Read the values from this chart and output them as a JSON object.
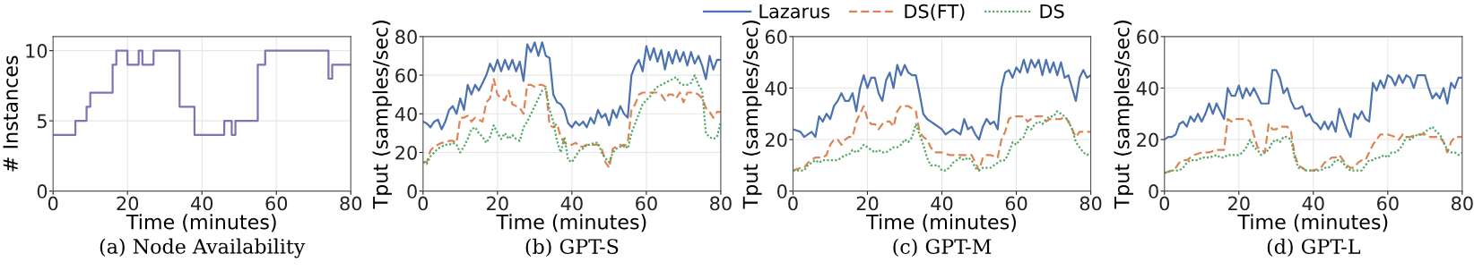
{
  "chart_data": [
    {
      "type": "step",
      "title": "(a) Node Availability",
      "xlabel": "Time (minutes)",
      "ylabel": "# Instances",
      "xlim": [
        0,
        80
      ],
      "ylim": [
        0,
        11
      ],
      "xticks": [
        0,
        20,
        40,
        60,
        80
      ],
      "yticks": [
        0,
        5,
        10
      ],
      "grid": true,
      "x": [
        0,
        6,
        9,
        10,
        16,
        17,
        20,
        23,
        24,
        27,
        34,
        38,
        46,
        48,
        49,
        55,
        57,
        74,
        75,
        80
      ],
      "series": [
        {
          "color": "#8172b3",
          "line_style": "solid",
          "values": [
            4,
            5,
            6,
            7,
            9,
            10,
            9,
            10,
            9,
            10,
            6,
            4,
            5,
            4,
            5,
            9,
            10,
            8,
            9,
            9
          ]
        }
      ]
    },
    {
      "type": "line",
      "title": "(b) GPT-S",
      "xlabel": "Time (minutes)",
      "ylabel": "Tput (samples/sec)",
      "xlim": [
        0,
        80
      ],
      "ylim": [
        0,
        80
      ],
      "xticks": [
        0,
        20,
        40,
        60,
        80
      ],
      "yticks": [
        0,
        20,
        40,
        60,
        80
      ],
      "grid": true,
      "x": [
        0,
        1,
        2,
        3,
        4,
        5,
        6,
        7,
        8,
        9,
        10,
        11,
        12,
        13,
        14,
        15,
        16,
        17,
        18,
        19,
        20,
        21,
        22,
        23,
        24,
        25,
        26,
        27,
        28,
        29,
        30,
        31,
        32,
        33,
        34,
        35,
        36,
        37,
        38,
        39,
        40,
        41,
        42,
        43,
        44,
        45,
        46,
        47,
        48,
        49,
        50,
        51,
        52,
        53,
        54,
        55,
        56,
        57,
        58,
        59,
        60,
        61,
        62,
        63,
        64,
        65,
        66,
        67,
        68,
        69,
        70,
        71,
        72,
        73,
        74,
        75,
        76,
        77,
        78,
        79,
        80
      ],
      "series": [
        {
          "color": "#4c72b0",
          "line_style": "solid",
          "values": [
            36,
            35,
            33,
            36,
            37,
            32,
            36,
            42,
            44,
            40,
            48,
            42,
            55,
            50,
            55,
            52,
            56,
            60,
            66,
            62,
            68,
            62,
            68,
            63,
            68,
            62,
            67,
            57,
            76,
            72,
            77,
            70,
            77,
            70,
            69,
            50,
            46,
            45,
            42,
            35,
            33,
            36,
            34,
            36,
            33,
            38,
            35,
            42,
            38,
            40,
            34,
            42,
            38,
            44,
            40,
            38,
            60,
            65,
            68,
            62,
            75,
            68,
            74,
            67,
            73,
            63,
            72,
            66,
            73,
            67,
            72,
            65,
            72,
            66,
            70,
            65,
            58,
            70,
            63,
            68,
            68
          ]
        },
        {
          "color": "#dd8452",
          "line_style": "dashed",
          "values": [
            15,
            15,
            21,
            23,
            24,
            25,
            25,
            26,
            26,
            25,
            38,
            38,
            39,
            36,
            38,
            37,
            36,
            46,
            48,
            58,
            50,
            48,
            47,
            52,
            45,
            44,
            43,
            40,
            55,
            55,
            54,
            55,
            55,
            54,
            34,
            33,
            35,
            28,
            25,
            24,
            24,
            25,
            23,
            23,
            24,
            24,
            24,
            24,
            22,
            15,
            12,
            22,
            23,
            24,
            23,
            25,
            42,
            45,
            50,
            51,
            51,
            51,
            51,
            51,
            50,
            47,
            50,
            50,
            48,
            51,
            46,
            51,
            51,
            51,
            50,
            48,
            43,
            41,
            38,
            41,
            41
          ]
        },
        {
          "color": "#55a868",
          "line_style": "dotted",
          "values": [
            15,
            14,
            18,
            20,
            22,
            23,
            24,
            24,
            25,
            24,
            20,
            23,
            27,
            32,
            33,
            30,
            28,
            25,
            28,
            34,
            30,
            27,
            30,
            27,
            29,
            27,
            26,
            33,
            36,
            40,
            44,
            48,
            52,
            53,
            42,
            36,
            26,
            20,
            28,
            16,
            15,
            18,
            21,
            22,
            24,
            24,
            25,
            25,
            20,
            17,
            15,
            20,
            22,
            23,
            24,
            22,
            30,
            35,
            40,
            45,
            47,
            49,
            52,
            54,
            55,
            56,
            57,
            58,
            59,
            56,
            55,
            55,
            56,
            60,
            55,
            52,
            30,
            28,
            27,
            28,
            36
          ]
        }
      ]
    },
    {
      "type": "line",
      "title": "(c) GPT-M",
      "xlabel": "Time (minutes)",
      "ylabel": "Tput (samples/sec)",
      "xlim": [
        0,
        80
      ],
      "ylim": [
        0,
        60
      ],
      "xticks": [
        0,
        20,
        40,
        60,
        80
      ],
      "yticks": [
        0,
        20,
        40,
        60
      ],
      "grid": true,
      "legend": "top",
      "series": [
        {
          "name": "Lazarus",
          "color": "#4c72b0",
          "line_style": "solid",
          "x": [
            0,
            2,
            3,
            5,
            6,
            7,
            8,
            9,
            10,
            11,
            12,
            13,
            14,
            15,
            16,
            17,
            18,
            19,
            20,
            21,
            22,
            23,
            24,
            25,
            26,
            27,
            28,
            29,
            30,
            31,
            32,
            33,
            34,
            35,
            36,
            37,
            38,
            39,
            40,
            41,
            42,
            43,
            44,
            45,
            46,
            47,
            48,
            49,
            50,
            51,
            52,
            53,
            54,
            55,
            56,
            57,
            58,
            59,
            60,
            61,
            62,
            63,
            64,
            65,
            66,
            67,
            68,
            69,
            70,
            71,
            72,
            73,
            74,
            75,
            76,
            77,
            78,
            79,
            80
          ],
          "values": [
            24,
            23,
            21,
            23,
            21,
            29,
            27,
            30,
            28,
            33,
            35,
            38,
            35,
            35,
            38,
            31,
            40,
            45,
            40,
            44,
            44,
            38,
            35,
            43,
            46,
            40,
            49,
            45,
            49,
            46,
            45,
            45,
            38,
            30,
            28,
            27,
            26,
            25,
            24,
            22,
            23,
            24,
            23,
            22,
            28,
            24,
            25,
            22,
            20,
            25,
            28,
            26,
            27,
            24,
            40,
            46,
            47,
            44,
            48,
            46,
            51,
            46,
            51,
            48,
            51,
            45,
            51,
            46,
            50,
            45,
            50,
            44,
            45,
            40,
            35,
            44,
            47,
            44,
            45
          ]
        },
        {
          "name": "DS(FT)",
          "color": "#dd8452",
          "line_style": "dashed",
          "x": [
            0,
            2,
            3,
            4,
            5,
            6,
            8,
            9,
            10,
            11,
            12,
            13,
            14,
            15,
            16,
            17,
            18,
            19,
            20,
            21,
            22,
            23,
            24,
            25,
            26,
            27,
            28,
            29,
            30,
            31,
            32,
            33,
            34,
            35,
            36,
            37,
            38,
            39,
            40,
            42,
            45,
            48,
            49,
            50,
            51,
            52,
            53,
            55,
            56,
            57,
            58,
            59,
            60,
            62,
            63,
            64,
            65,
            67,
            68,
            69,
            70,
            72,
            73,
            74,
            75,
            76,
            77,
            79,
            80
          ],
          "values": [
            8,
            9,
            9,
            11,
            12,
            13,
            13,
            14,
            18,
            20,
            20,
            18,
            20,
            21,
            21,
            27,
            30,
            33,
            28,
            26,
            26,
            24,
            26,
            27,
            27,
            25,
            31,
            33,
            33,
            33,
            32,
            31,
            23,
            21,
            20,
            17,
            15,
            15,
            15,
            14,
            14,
            14,
            11,
            8,
            13,
            14,
            14,
            13,
            20,
            23,
            28,
            29,
            29,
            29,
            27,
            28,
            29,
            29,
            27,
            28,
            28,
            28,
            29,
            27,
            24,
            21,
            23,
            23,
            23
          ]
        },
        {
          "name": "DS",
          "color": "#55a868",
          "line_style": "dotted",
          "x": [
            0,
            2,
            3,
            4,
            5,
            6,
            7,
            8,
            10,
            12,
            13,
            14,
            15,
            16,
            17,
            18,
            19,
            20,
            21,
            22,
            23,
            24,
            25,
            26,
            27,
            28,
            29,
            30,
            31,
            32,
            33,
            34,
            35,
            36,
            37,
            38,
            39,
            40,
            41,
            42,
            43,
            44,
            45,
            46,
            47,
            48,
            49,
            50,
            51,
            52,
            53,
            54,
            55,
            56,
            57,
            58,
            59,
            60,
            61,
            62,
            63,
            64,
            65,
            66,
            67,
            68,
            69,
            70,
            71,
            72,
            73,
            74,
            75,
            76,
            77,
            78,
            79,
            80
          ],
          "values": [
            8,
            8,
            8,
            10,
            11,
            12,
            11,
            12,
            12,
            12,
            13,
            14,
            14,
            16,
            15,
            16,
            18,
            17,
            16,
            15,
            16,
            15,
            15,
            16,
            17,
            17,
            18,
            20,
            19,
            21,
            26,
            22,
            18,
            13,
            10,
            10,
            10,
            8,
            8,
            9,
            11,
            12,
            13,
            12,
            13,
            12,
            9,
            8,
            9,
            9,
            9,
            10,
            11,
            12,
            12,
            15,
            19,
            18,
            20,
            21,
            25,
            24,
            26,
            27,
            26,
            28,
            29,
            29,
            31,
            30,
            29,
            27,
            24,
            19,
            17,
            15,
            14,
            15
          ]
        }
      ]
    },
    {
      "type": "line",
      "title": "(d) GPT-L",
      "xlabel": "Time (minutes)",
      "ylabel": "Tput (samples/sec)",
      "xlim": [
        0,
        80
      ],
      "ylim": [
        0,
        60
      ],
      "xticks": [
        0,
        20,
        40,
        60,
        80
      ],
      "yticks": [
        0,
        20,
        40,
        60
      ],
      "grid": true,
      "series": [
        {
          "color": "#4c72b0",
          "line_style": "solid",
          "x": [
            0,
            1,
            2,
            3,
            4,
            5,
            6,
            7,
            8,
            9,
            10,
            11,
            12,
            13,
            14,
            15,
            16,
            17,
            18,
            19,
            20,
            21,
            22,
            23,
            24,
            25,
            26,
            27,
            28,
            29,
            30,
            31,
            32,
            33,
            34,
            35,
            36,
            37,
            38,
            39,
            40,
            41,
            42,
            43,
            44,
            45,
            46,
            47,
            48,
            49,
            50,
            51,
            52,
            53,
            54,
            55,
            56,
            57,
            58,
            59,
            60,
            61,
            62,
            63,
            64,
            65,
            66,
            67,
            68,
            69,
            70,
            71,
            72,
            73,
            74,
            75,
            76,
            77,
            78,
            79,
            80
          ],
          "values": [
            20,
            21,
            21,
            22,
            26,
            27,
            25,
            29,
            27,
            30,
            27,
            30,
            34,
            30,
            34,
            31,
            28,
            40,
            37,
            37,
            41,
            36,
            40,
            37,
            40,
            37,
            34,
            34,
            34,
            47,
            47,
            44,
            38,
            40,
            35,
            32,
            32,
            33,
            29,
            30,
            27,
            26,
            24,
            27,
            24,
            27,
            23,
            32,
            28,
            24,
            21,
            30,
            28,
            31,
            28,
            27,
            42,
            39,
            43,
            40,
            45,
            44,
            41,
            45,
            42,
            45,
            44,
            40,
            45,
            45,
            45,
            40,
            36,
            38,
            36,
            40,
            34,
            42,
            40,
            44,
            44
          ]
        },
        {
          "color": "#dd8452",
          "line_style": "dashed",
          "x": [
            0,
            2,
            3,
            4,
            5,
            6,
            8,
            10,
            12,
            14,
            16,
            17,
            18,
            19,
            20,
            22,
            23,
            24,
            25,
            26,
            27,
            28,
            29,
            30,
            31,
            33,
            34,
            35,
            36,
            37,
            38,
            40,
            42,
            43,
            44,
            45,
            46,
            47,
            48,
            49,
            50,
            51,
            52,
            53,
            54,
            55,
            56,
            57,
            58,
            60,
            62,
            63,
            64,
            65,
            66,
            68,
            70,
            71,
            72,
            74,
            75,
            76,
            77,
            78,
            80
          ],
          "values": [
            7,
            8,
            9,
            11,
            12,
            12,
            14,
            15,
            15,
            16,
            16,
            28,
            27,
            28,
            28,
            28,
            27,
            22,
            17,
            16,
            15,
            26,
            24,
            24,
            25,
            25,
            23,
            14,
            10,
            9,
            8,
            8,
            9,
            11,
            12,
            13,
            13,
            14,
            12,
            10,
            9,
            9,
            11,
            12,
            12,
            15,
            18,
            20,
            22,
            22,
            21,
            20,
            22,
            21,
            21,
            22,
            22,
            21,
            21,
            21,
            19,
            15,
            19,
            21,
            21
          ]
        },
        {
          "color": "#55a868",
          "line_style": "dotted",
          "x": [
            0,
            2,
            3,
            4,
            5,
            6,
            7,
            8,
            9,
            10,
            12,
            14,
            15,
            16,
            17,
            18,
            20,
            21,
            22,
            23,
            24,
            25,
            26,
            27,
            28,
            29,
            30,
            31,
            32,
            33,
            34,
            35,
            36,
            37,
            38,
            40,
            42,
            43,
            44,
            45,
            46,
            47,
            48,
            49,
            50,
            51,
            52,
            53,
            54,
            55,
            56,
            57,
            58,
            59,
            60,
            61,
            62,
            63,
            64,
            65,
            66,
            67,
            68,
            69,
            70,
            71,
            72,
            73,
            74,
            75,
            76,
            77,
            78,
            79,
            80
          ],
          "values": [
            7,
            8,
            8,
            8,
            9,
            11,
            12,
            12,
            12,
            13,
            13,
            14,
            13,
            13,
            14,
            14,
            14,
            15,
            17,
            20,
            17,
            16,
            14,
            15,
            16,
            19,
            20,
            19,
            21,
            21,
            20,
            13,
            9,
            9,
            8,
            8,
            8,
            9,
            9,
            10,
            12,
            12,
            11,
            9,
            8,
            8,
            8,
            8,
            10,
            12,
            12,
            13,
            13,
            14,
            13,
            15,
            15,
            16,
            18,
            21,
            20,
            21,
            22,
            22,
            23,
            24,
            25,
            23,
            22,
            19,
            16,
            15,
            15,
            14,
            15
          ]
        }
      ]
    }
  ]
}
